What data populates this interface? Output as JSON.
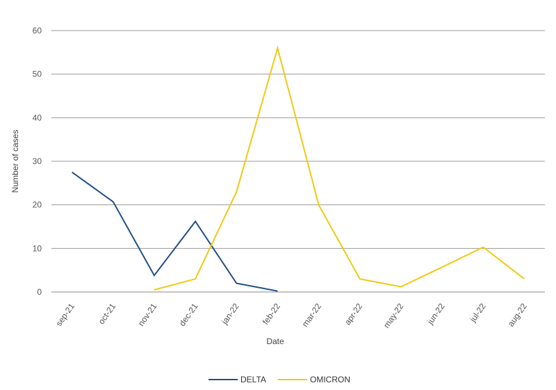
{
  "chart_data": {
    "type": "line",
    "title": "",
    "xlabel": "Date",
    "ylabel": "Number of cases",
    "ylim": [
      0,
      60
    ],
    "yticks": [
      0,
      10,
      20,
      30,
      40,
      50,
      60
    ],
    "grid": true,
    "legend_position": "bottom",
    "categories": [
      "sep-21",
      "oct-21",
      "nov-21",
      "dec-21",
      "jan-22",
      "feb-22",
      "mar-22",
      "apr-22",
      "may-22",
      "jun-22",
      "jul-22",
      "aug-22"
    ],
    "series": [
      {
        "name": "DELTA",
        "color": "#1f4e89",
        "values": [
          27.5,
          20.7,
          3.8,
          16.2,
          2.0,
          0.2,
          null,
          null,
          null,
          null,
          null,
          null
        ]
      },
      {
        "name": "OMICRON",
        "color": "#f2c811",
        "values": [
          null,
          null,
          0.5,
          3.0,
          23.0,
          56.0,
          20.0,
          3.0,
          1.2,
          5.7,
          10.3,
          3.0
        ]
      }
    ]
  }
}
